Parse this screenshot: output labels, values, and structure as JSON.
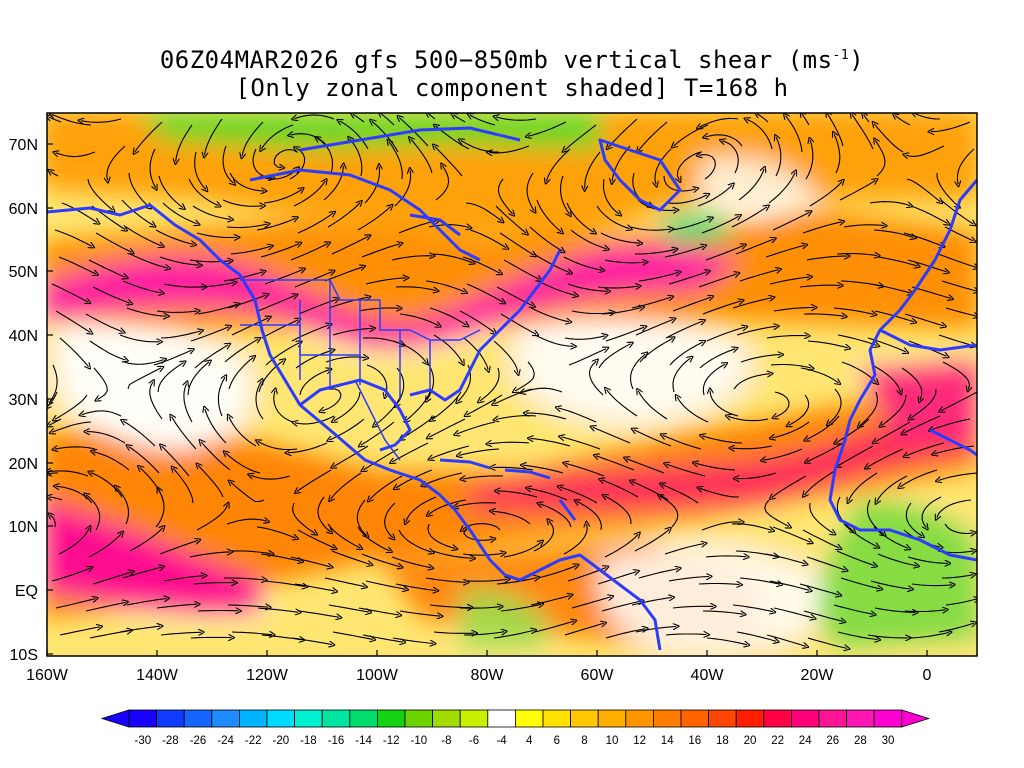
{
  "header": {
    "title_line1_prefix": "06Z04MAR2026 gfs 500−850mb vertical shear (ms",
    "title_line1_superscript": "-1",
    "title_line1_suffix": ")",
    "title_line2": "[Only zonal component shaded] T=168 h"
  },
  "map": {
    "lat_labels": [
      "70N",
      "60N",
      "50N",
      "40N",
      "30N",
      "20N",
      "10N",
      "EQ",
      "10S"
    ],
    "lon_labels": [
      "160W",
      "140W",
      "120W",
      "100W",
      "80W",
      "60W",
      "40W",
      "20W",
      "0"
    ],
    "coastline_color": "#2b3cff",
    "streamline_color": "#000000"
  },
  "colorbar": {
    "labels": [
      "-30",
      "-28",
      "-26",
      "-24",
      "-22",
      "-20",
      "-18",
      "-16",
      "-14",
      "-12",
      "-10",
      "-8",
      "-6",
      "-4",
      "4",
      "6",
      "8",
      "10",
      "12",
      "14",
      "16",
      "18",
      "20",
      "22",
      "24",
      "26",
      "28",
      "30"
    ],
    "colors": [
      "#1a00ff",
      "#0f3bff",
      "#1466ff",
      "#1e8cff",
      "#00b4ff",
      "#00dcff",
      "#00f0d2",
      "#00e6a0",
      "#00dc6e",
      "#14d214",
      "#6ed200",
      "#a0dc00",
      "#c8f000",
      "#ffffff",
      "#ffff00",
      "#ffe100",
      "#ffc800",
      "#ffaf00",
      "#ff9600",
      "#ff7d00",
      "#ff6400",
      "#ff4600",
      "#ff1e00",
      "#ff0046",
      "#ff0078",
      "#ff1496",
      "#ff14b4",
      "#ff00d2"
    ]
  }
}
